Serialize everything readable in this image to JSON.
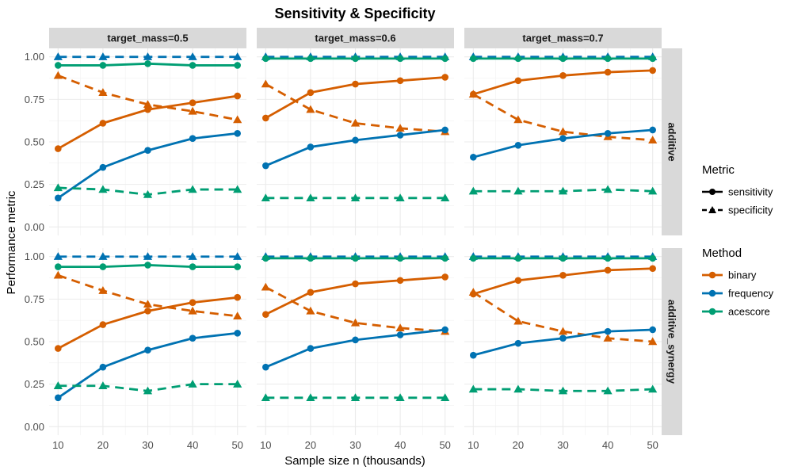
{
  "chart_data": {
    "type": "line",
    "title": "Sensitivity & Specificity",
    "xlabel": "Sample size n (thousands)",
    "ylabel": "Performance metric",
    "x": [
      10,
      20,
      30,
      40,
      50
    ],
    "x_ticks": [
      "10",
      "20",
      "30",
      "40",
      "50"
    ],
    "xlim": [
      8,
      52
    ],
    "ylim": [
      -0.05,
      1.05
    ],
    "y_ticks": [
      "0.00",
      "0.25",
      "0.50",
      "0.75",
      "1.00"
    ],
    "y_tick_values": [
      0,
      0.25,
      0.5,
      0.75,
      1.0
    ],
    "columns": [
      "target_mass=0.5",
      "target_mass=0.6",
      "target_mass=0.7"
    ],
    "rows": [
      "additive",
      "additive_synergy"
    ],
    "legend": {
      "metric_title": "Metric",
      "metrics": [
        {
          "name": "sensitivity",
          "linetype": "solid",
          "shape": "circle"
        },
        {
          "name": "specificity",
          "linetype": "dashed",
          "shape": "triangle"
        }
      ],
      "method_title": "Method",
      "methods": [
        {
          "name": "binary",
          "color": "#D55E00"
        },
        {
          "name": "frequency",
          "color": "#0072B2"
        },
        {
          "name": "acescore",
          "color": "#009E73"
        }
      ]
    },
    "panels": [
      {
        "row": 0,
        "col": 0,
        "series": [
          {
            "method": "binary",
            "metric": "sensitivity",
            "values": [
              0.46,
              0.61,
              0.69,
              0.73,
              0.77
            ]
          },
          {
            "method": "binary",
            "metric": "specificity",
            "values": [
              0.89,
              0.79,
              0.72,
              0.68,
              0.63
            ]
          },
          {
            "method": "frequency",
            "metric": "sensitivity",
            "values": [
              0.17,
              0.35,
              0.45,
              0.52,
              0.55
            ]
          },
          {
            "method": "frequency",
            "metric": "specificity",
            "values": [
              1.0,
              1.0,
              1.0,
              1.0,
              1.0
            ]
          },
          {
            "method": "acescore",
            "metric": "sensitivity",
            "values": [
              0.95,
              0.95,
              0.96,
              0.95,
              0.95
            ]
          },
          {
            "method": "acescore",
            "metric": "specificity",
            "values": [
              0.23,
              0.22,
              0.19,
              0.22,
              0.22
            ]
          }
        ]
      },
      {
        "row": 0,
        "col": 1,
        "series": [
          {
            "method": "binary",
            "metric": "sensitivity",
            "values": [
              0.64,
              0.79,
              0.84,
              0.86,
              0.88
            ]
          },
          {
            "method": "binary",
            "metric": "specificity",
            "values": [
              0.84,
              0.69,
              0.61,
              0.58,
              0.56
            ]
          },
          {
            "method": "frequency",
            "metric": "sensitivity",
            "values": [
              0.36,
              0.47,
              0.51,
              0.54,
              0.57
            ]
          },
          {
            "method": "frequency",
            "metric": "specificity",
            "values": [
              1.0,
              1.0,
              1.0,
              1.0,
              1.0
            ]
          },
          {
            "method": "acescore",
            "metric": "sensitivity",
            "values": [
              0.99,
              0.99,
              0.99,
              0.99,
              0.99
            ]
          },
          {
            "method": "acescore",
            "metric": "specificity",
            "values": [
              0.17,
              0.17,
              0.17,
              0.17,
              0.17
            ]
          }
        ]
      },
      {
        "row": 0,
        "col": 2,
        "series": [
          {
            "method": "binary",
            "metric": "sensitivity",
            "values": [
              0.78,
              0.86,
              0.89,
              0.91,
              0.92
            ]
          },
          {
            "method": "binary",
            "metric": "specificity",
            "values": [
              0.78,
              0.63,
              0.56,
              0.53,
              0.51
            ]
          },
          {
            "method": "frequency",
            "metric": "sensitivity",
            "values": [
              0.41,
              0.48,
              0.52,
              0.55,
              0.57
            ]
          },
          {
            "method": "frequency",
            "metric": "specificity",
            "values": [
              1.0,
              1.0,
              1.0,
              1.0,
              1.0
            ]
          },
          {
            "method": "acescore",
            "metric": "sensitivity",
            "values": [
              0.99,
              0.99,
              0.99,
              0.99,
              0.99
            ]
          },
          {
            "method": "acescore",
            "metric": "specificity",
            "values": [
              0.21,
              0.21,
              0.21,
              0.22,
              0.21
            ]
          }
        ]
      },
      {
        "row": 1,
        "col": 0,
        "series": [
          {
            "method": "binary",
            "metric": "sensitivity",
            "values": [
              0.46,
              0.6,
              0.68,
              0.73,
              0.76
            ]
          },
          {
            "method": "binary",
            "metric": "specificity",
            "values": [
              0.89,
              0.8,
              0.72,
              0.68,
              0.65
            ]
          },
          {
            "method": "frequency",
            "metric": "sensitivity",
            "values": [
              0.17,
              0.35,
              0.45,
              0.52,
              0.55
            ]
          },
          {
            "method": "frequency",
            "metric": "specificity",
            "values": [
              1.0,
              1.0,
              1.0,
              1.0,
              1.0
            ]
          },
          {
            "method": "acescore",
            "metric": "sensitivity",
            "values": [
              0.94,
              0.94,
              0.95,
              0.94,
              0.94
            ]
          },
          {
            "method": "acescore",
            "metric": "specificity",
            "values": [
              0.24,
              0.24,
              0.21,
              0.25,
              0.25
            ]
          }
        ]
      },
      {
        "row": 1,
        "col": 1,
        "series": [
          {
            "method": "binary",
            "metric": "sensitivity",
            "values": [
              0.66,
              0.79,
              0.84,
              0.86,
              0.88
            ]
          },
          {
            "method": "binary",
            "metric": "specificity",
            "values": [
              0.82,
              0.68,
              0.61,
              0.58,
              0.56
            ]
          },
          {
            "method": "frequency",
            "metric": "sensitivity",
            "values": [
              0.35,
              0.46,
              0.51,
              0.54,
              0.57
            ]
          },
          {
            "method": "frequency",
            "metric": "specificity",
            "values": [
              1.0,
              1.0,
              1.0,
              1.0,
              1.0
            ]
          },
          {
            "method": "acescore",
            "metric": "sensitivity",
            "values": [
              0.99,
              0.99,
              0.99,
              0.99,
              0.99
            ]
          },
          {
            "method": "acescore",
            "metric": "specificity",
            "values": [
              0.17,
              0.17,
              0.17,
              0.17,
              0.17
            ]
          }
        ]
      },
      {
        "row": 1,
        "col": 2,
        "series": [
          {
            "method": "binary",
            "metric": "sensitivity",
            "values": [
              0.78,
              0.86,
              0.89,
              0.92,
              0.93
            ]
          },
          {
            "method": "binary",
            "metric": "specificity",
            "values": [
              0.79,
              0.62,
              0.56,
              0.52,
              0.5
            ]
          },
          {
            "method": "frequency",
            "metric": "sensitivity",
            "values": [
              0.42,
              0.49,
              0.52,
              0.56,
              0.57
            ]
          },
          {
            "method": "frequency",
            "metric": "specificity",
            "values": [
              1.0,
              1.0,
              1.0,
              1.0,
              1.0
            ]
          },
          {
            "method": "acescore",
            "metric": "sensitivity",
            "values": [
              0.99,
              0.99,
              0.99,
              0.99,
              0.99
            ]
          },
          {
            "method": "acescore",
            "metric": "specificity",
            "values": [
              0.22,
              0.22,
              0.21,
              0.21,
              0.22
            ]
          }
        ]
      }
    ]
  }
}
